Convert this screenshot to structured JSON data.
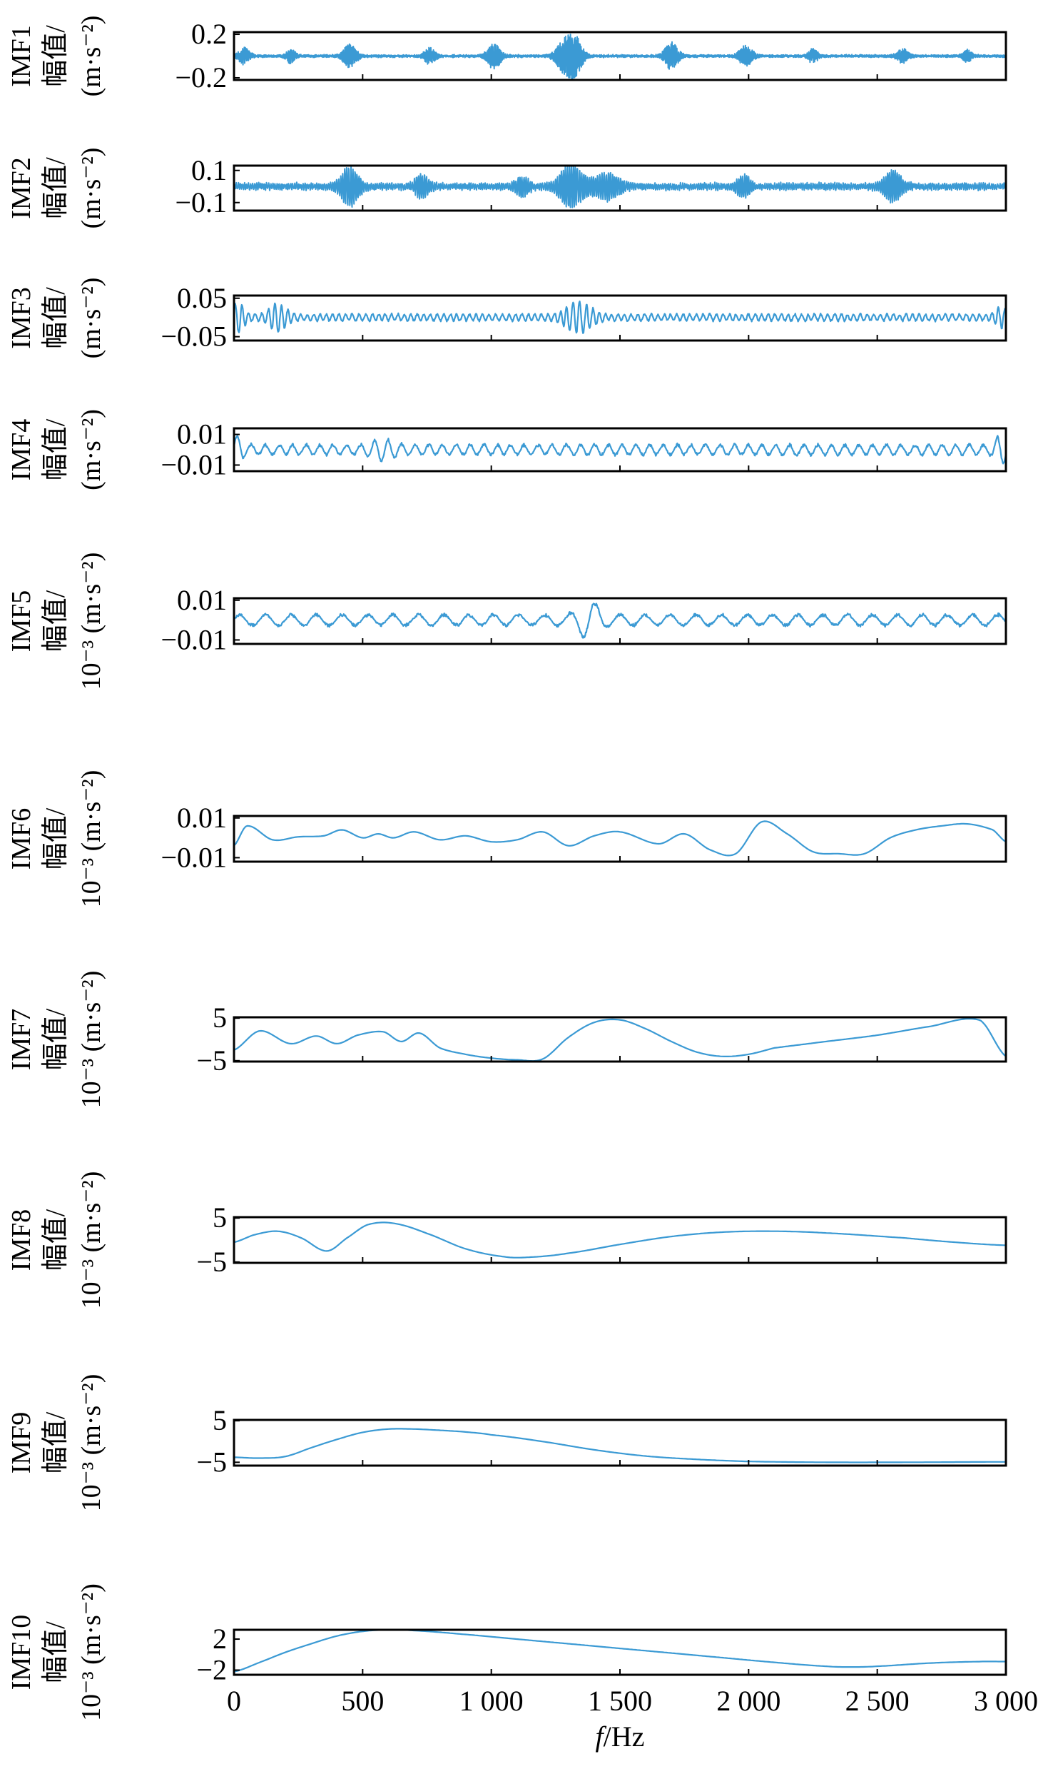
{
  "chart_data": {
    "type": "line",
    "line_color": "#3b9ad4",
    "frame_color": "#000000",
    "grid": false,
    "legend": "none",
    "xlim": [
      0,
      3000
    ],
    "xticks": [
      0,
      500,
      1000,
      1500,
      2000,
      2500,
      3000
    ],
    "xtick_labels": [
      "0",
      "500",
      "1 000",
      "1 500",
      "2 000",
      "2 500",
      "3 000"
    ],
    "xlabel_italic": "f",
    "xlabel_unit": "/Hz",
    "panels": [
      {
        "name": "IMF1",
        "ylabel_lines": [
          "IMF1",
          "幅值/",
          "(m·s⁻²)"
        ],
        "ylim": [
          -0.22,
          0.22
        ],
        "yticks": [
          0.2,
          -0.2
        ],
        "ytick_labels": [
          "0.2",
          "−0.2"
        ],
        "kind": "impulsive",
        "noise": 0.012,
        "bursts": [
          {
            "x": 40,
            "amp": 0.07,
            "width": 25
          },
          {
            "x": 220,
            "amp": 0.06,
            "width": 20
          },
          {
            "x": 450,
            "amp": 0.1,
            "width": 30
          },
          {
            "x": 760,
            "amp": 0.07,
            "width": 25
          },
          {
            "x": 1010,
            "amp": 0.11,
            "width": 30
          },
          {
            "x": 1290,
            "amp": 0.16,
            "width": 40
          },
          {
            "x": 1330,
            "amp": 0.12,
            "width": 30
          },
          {
            "x": 1700,
            "amp": 0.12,
            "width": 30
          },
          {
            "x": 1990,
            "amp": 0.09,
            "width": 30
          },
          {
            "x": 2250,
            "amp": 0.06,
            "width": 20
          },
          {
            "x": 2600,
            "amp": 0.06,
            "width": 25
          },
          {
            "x": 2850,
            "amp": 0.05,
            "width": 20
          }
        ],
        "freq": 0.35
      },
      {
        "name": "IMF2",
        "ylabel_lines": [
          "IMF2",
          "幅值/",
          "(m·s⁻²)"
        ],
        "ylim": [
          -0.15,
          0.13
        ],
        "yticks": [
          0.1,
          -0.1
        ],
        "ytick_labels": [
          "0.1",
          "−0.1"
        ],
        "kind": "impulsive",
        "noise": 0.022,
        "bursts": [
          {
            "x": 450,
            "amp": 0.11,
            "width": 40
          },
          {
            "x": 730,
            "amp": 0.06,
            "width": 30
          },
          {
            "x": 1120,
            "amp": 0.05,
            "width": 30
          },
          {
            "x": 1310,
            "amp": 0.12,
            "width": 55
          },
          {
            "x": 1450,
            "amp": 0.07,
            "width": 60
          },
          {
            "x": 1980,
            "amp": 0.06,
            "width": 30
          },
          {
            "x": 2560,
            "amp": 0.09,
            "width": 40
          }
        ],
        "freq": 0.16
      },
      {
        "name": "IMF3",
        "ylabel_lines": [
          "IMF3",
          "幅值/",
          "(m·s⁻²)"
        ],
        "ylim": [
          -0.06,
          0.057
        ],
        "yticks": [
          0.05,
          -0.05
        ],
        "ytick_labels": [
          "0.05",
          "−0.05"
        ],
        "kind": "oscillatory",
        "noise": 0.011,
        "bursts": [
          {
            "x": 15,
            "amp": 0.03,
            "width": 30
          },
          {
            "x": 170,
            "amp": 0.03,
            "width": 40
          },
          {
            "x": 1340,
            "amp": 0.035,
            "width": 60
          },
          {
            "x": 2980,
            "amp": 0.02,
            "width": 25
          }
        ],
        "freq": 0.085
      },
      {
        "name": "IMF4",
        "ylabel_lines": [
          "IMF4",
          "幅值/",
          "(m·s⁻²)"
        ],
        "ylim": [
          -0.014,
          0.014
        ],
        "yticks": [
          0.01,
          -0.01
        ],
        "ytick_labels": [
          "0.01",
          "−0.01"
        ],
        "kind": "oscillatory",
        "noise": 0.0042,
        "bursts": [
          {
            "x": 10,
            "amp": 0.006,
            "width": 30
          },
          {
            "x": 580,
            "amp": 0.004,
            "width": 50
          },
          {
            "x": 2980,
            "amp": 0.007,
            "width": 25
          }
        ],
        "freq": 0.04
      },
      {
        "name": "IMF5",
        "ylabel_lines": [
          "IMF5",
          "幅值/",
          "10⁻³ (m·s⁻²)"
        ],
        "ylim": [
          -0.012,
          0.011
        ],
        "yticks": [
          0.01,
          -0.01
        ],
        "ytick_labels": [
          "0.01",
          "−0.01"
        ],
        "kind": "oscillatory",
        "noise": 0.0035,
        "bursts": [
          {
            "x": 1380,
            "amp": 0.007,
            "width": 50
          }
        ],
        "freq": 0.022
      },
      {
        "name": "IMF6",
        "ylabel_lines": [
          "IMF6",
          "幅值/",
          "10⁻³ (m·s⁻²)"
        ],
        "ylim": [
          -0.012,
          0.011
        ],
        "yticks": [
          0.01,
          -0.01
        ],
        "ytick_labels": [
          "0.01",
          "−0.01"
        ],
        "kind": "points",
        "x": [
          0,
          50,
          150,
          250,
          350,
          420,
          500,
          560,
          620,
          700,
          800,
          900,
          1000,
          1100,
          1200,
          1300,
          1400,
          1500,
          1650,
          1750,
          1850,
          1950,
          2050,
          2150,
          2250,
          2350,
          2450,
          2550,
          2650,
          2750,
          2850,
          2950,
          3000
        ],
        "y": [
          -0.004,
          0.006,
          -0.001,
          0.0005,
          0.001,
          0.004,
          0.0,
          0.002,
          0.0,
          0.003,
          -0.001,
          0.001,
          -0.002,
          -0.001,
          0.003,
          -0.004,
          0.001,
          0.003,
          -0.003,
          0.002,
          -0.006,
          -0.008,
          0.008,
          0.002,
          -0.007,
          -0.008,
          -0.008,
          0.0,
          0.004,
          0.006,
          0.007,
          0.004,
          -0.002
        ]
      },
      {
        "name": "IMF7",
        "ylabel_lines": [
          "IMF7",
          "幅值/",
          "10⁻³ (m·s⁻²)"
        ],
        "ylim": [
          -5.2,
          5.2
        ],
        "yticks": [
          5,
          -5
        ],
        "ytick_labels": [
          "5",
          "−5"
        ],
        "kind": "points",
        "x": [
          0,
          100,
          220,
          320,
          400,
          480,
          580,
          650,
          720,
          800,
          900,
          1000,
          1100,
          1200,
          1300,
          1400,
          1500,
          1600,
          1700,
          1800,
          1900,
          2000,
          2100,
          2300,
          2500,
          2700,
          2900,
          3000
        ],
        "y": [
          -2.5,
          2.0,
          -1.0,
          0.8,
          -1.0,
          1.0,
          1.8,
          -0.5,
          1.5,
          -2.0,
          -3.5,
          -4.4,
          -4.8,
          -4.6,
          0.5,
          4.0,
          4.6,
          2.5,
          -0.5,
          -3.0,
          -4.0,
          -3.5,
          -2.0,
          -0.5,
          1.0,
          3.0,
          4.5,
          -4.0
        ]
      },
      {
        "name": "IMF8",
        "ylabel_lines": [
          "IMF8",
          "幅值/",
          "10⁻³ (m·s⁻²)"
        ],
        "ylim": [
          -5.2,
          5.2
        ],
        "yticks": [
          5,
          -5
        ],
        "ytick_labels": [
          "5",
          "−5"
        ],
        "kind": "points",
        "x": [
          0,
          80,
          170,
          260,
          360,
          440,
          520,
          620,
          750,
          900,
          1050,
          1150,
          1300,
          1500,
          1700,
          1900,
          2100,
          2300,
          2600,
          2800,
          3000
        ],
        "y": [
          -0.5,
          1.2,
          2.0,
          0.5,
          -2.5,
          0.5,
          3.5,
          3.8,
          1.5,
          -2.0,
          -3.8,
          -3.9,
          -3.0,
          -1.0,
          0.8,
          1.8,
          2.0,
          1.6,
          0.5,
          -0.5,
          -1.2
        ]
      },
      {
        "name": "IMF9",
        "ylabel_lines": [
          "IMF9",
          "幅值/",
          "10⁻³ (m·s⁻²)"
        ],
        "ylim": [
          -5.8,
          5.2
        ],
        "yticks": [
          5,
          -5
        ],
        "ytick_labels": [
          "5",
          "−5"
        ],
        "kind": "points",
        "x": [
          0,
          100,
          200,
          300,
          400,
          500,
          600,
          700,
          800,
          900,
          1000,
          1200,
          1400,
          1600,
          1800,
          2000,
          2300,
          2600,
          3000
        ],
        "y": [
          -3.8,
          -4.0,
          -3.6,
          -1.5,
          0.5,
          2.2,
          3.0,
          3.0,
          2.7,
          2.3,
          1.6,
          0.0,
          -2.0,
          -3.5,
          -4.3,
          -4.8,
          -5.0,
          -5.0,
          -4.9
        ]
      },
      {
        "name": "IMF10",
        "ylabel_lines": [
          "IMF10",
          "幅值/",
          "10⁻³ (m·s⁻²)"
        ],
        "ylim": [
          -2.6,
          3.2
        ],
        "yticks": [
          2,
          -2
        ],
        "ytick_labels": [
          "2",
          "−2"
        ],
        "kind": "points",
        "x": [
          0,
          100,
          200,
          300,
          400,
          500,
          600,
          700,
          900,
          1100,
          1300,
          1500,
          1700,
          1900,
          2100,
          2300,
          2400,
          2500,
          2700,
          2900,
          3000
        ],
        "y": [
          -2.2,
          -1.0,
          0.3,
          1.4,
          2.4,
          3.0,
          3.2,
          3.1,
          2.6,
          2.0,
          1.4,
          0.8,
          0.2,
          -0.4,
          -1.0,
          -1.5,
          -1.6,
          -1.5,
          -1.1,
          -0.9,
          -0.9
        ]
      }
    ]
  }
}
